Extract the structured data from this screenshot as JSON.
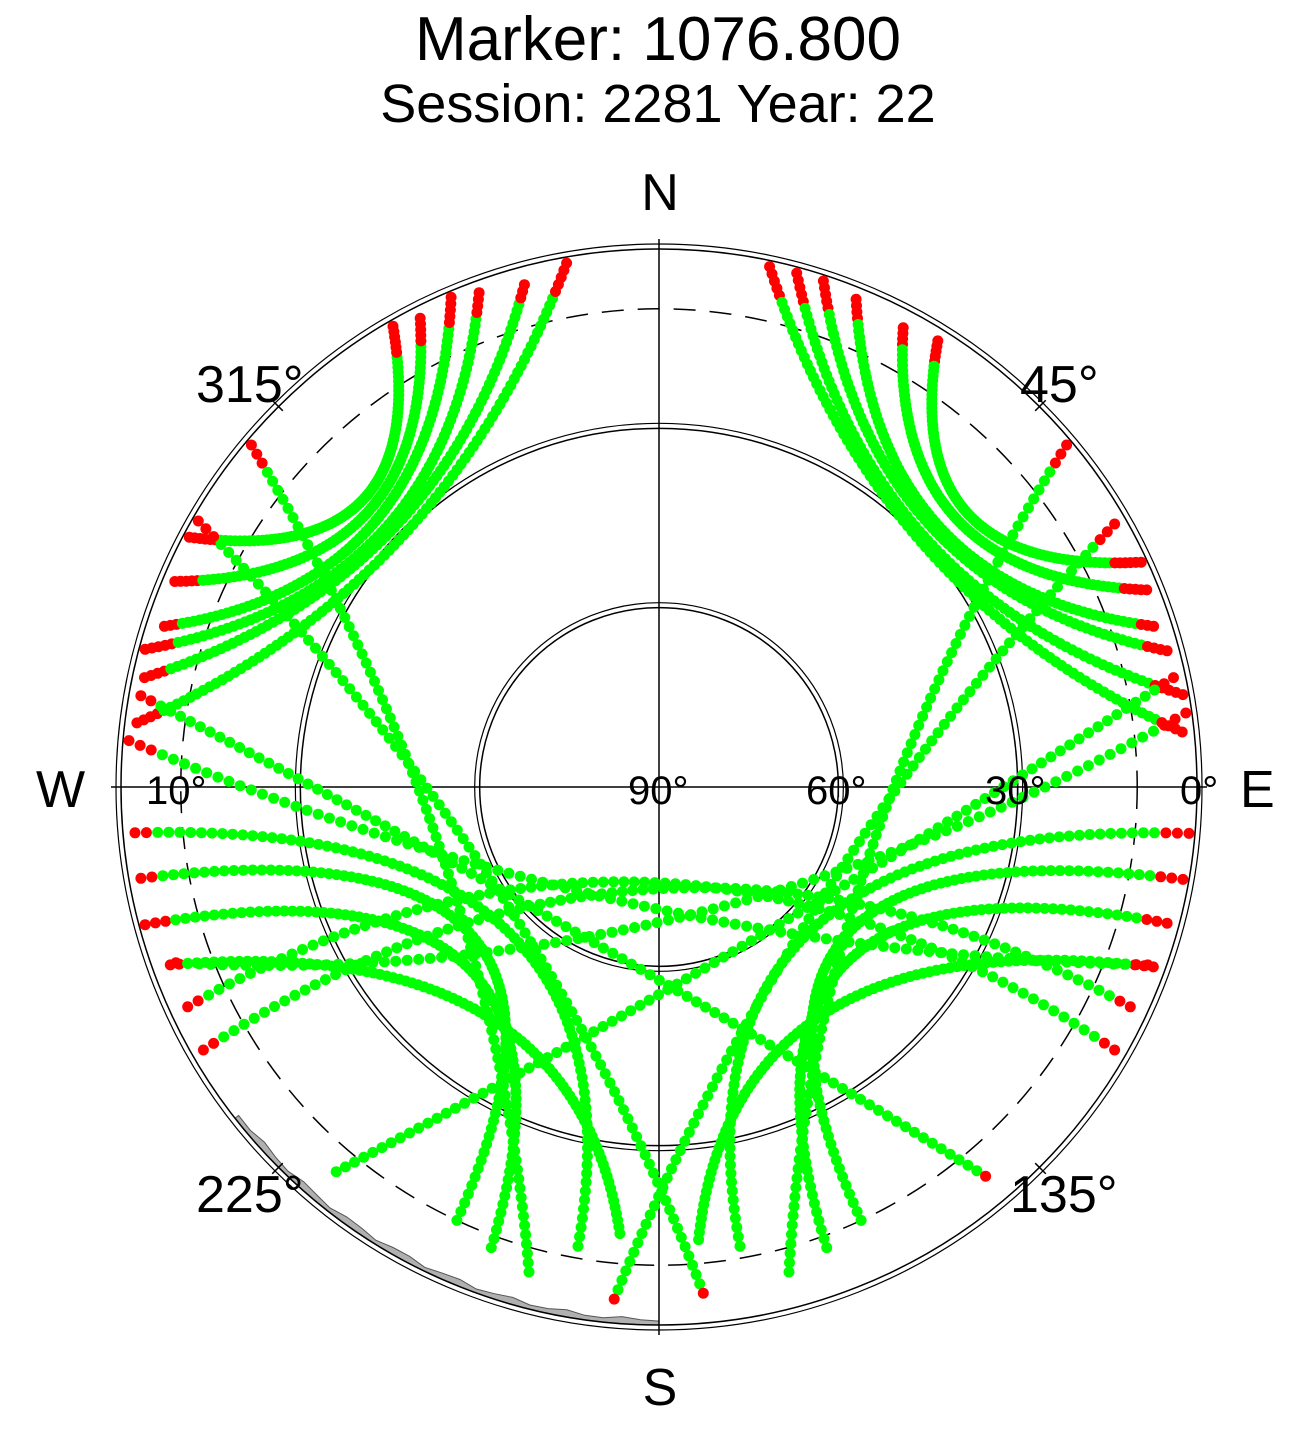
{
  "chart_data": {
    "type": "scatter",
    "projection": "polar-skyplot",
    "title": "Marker: 1076.800",
    "subtitle": "Session: 2281 Year: 22",
    "compass": {
      "north": "N",
      "south": "S",
      "east": "E",
      "west": "W"
    },
    "azimuth_labels": [
      {
        "az": 315,
        "text": "315°"
      },
      {
        "az": 45,
        "text": "45°"
      },
      {
        "az": 225,
        "text": "225°"
      },
      {
        "az": 135,
        "text": "135°"
      }
    ],
    "elevation_labels": [
      {
        "text": "0°",
        "el": 0,
        "side": "east"
      },
      {
        "text": "30°",
        "el": 30,
        "side": "east"
      },
      {
        "text": "60°",
        "el": 60,
        "side": "east"
      },
      {
        "text": "90°",
        "el": 90,
        "side": "center"
      },
      {
        "text": "10°",
        "el": 10,
        "side": "west"
      }
    ],
    "elevation_circles": [
      0,
      30,
      60
    ],
    "dashed_circle_el": 10,
    "ylim": [
      0,
      90
    ],
    "grid": true,
    "colors": {
      "above_mask": "#00ff00",
      "below_mask": "#ff0000",
      "horizon_obstruction": "#b0b0b0"
    },
    "tracks": [
      {
        "el0": 1,
        "az0": 285,
        "el1": 2,
        "az1": 340,
        "peak": 27
      },
      {
        "el0": 2,
        "az0": 282,
        "el1": 3,
        "az1": 345,
        "peak": 28
      },
      {
        "el0": 3,
        "az0": 288,
        "el1": 1,
        "az1": 337,
        "peak": 25
      },
      {
        "el0": 2,
        "az0": 293,
        "el1": 2,
        "az1": 333,
        "peak": 23
      },
      {
        "el0": 1,
        "az0": 298,
        "el1": 1,
        "az1": 330,
        "peak": 21
      },
      {
        "el0": 2,
        "az0": 277,
        "el1": 1,
        "az1": 350,
        "peak": 30
      },
      {
        "el0": 1,
        "az0": 18,
        "el1": 2,
        "az1": 75,
        "peak": 27
      },
      {
        "el0": 2,
        "az0": 22,
        "el1": 3,
        "az1": 72,
        "peak": 26
      },
      {
        "el0": 1,
        "az0": 15,
        "el1": 1,
        "az1": 80,
        "peak": 29
      },
      {
        "el0": 3,
        "az0": 28,
        "el1": 2,
        "az1": 68,
        "peak": 23
      },
      {
        "el0": 2,
        "az0": 32,
        "el1": 1,
        "az1": 65,
        "peak": 21
      },
      {
        "el0": 1,
        "az0": 12,
        "el1": 2,
        "az1": 84,
        "peak": 30
      },
      {
        "el0": 2,
        "az0": 260,
        "el1": 10,
        "az1": 205,
        "peak": 50
      },
      {
        "el0": 1,
        "az0": 255,
        "el1": 8,
        "az1": 200,
        "peak": 46
      },
      {
        "el0": 2,
        "az0": 265,
        "el1": 12,
        "az1": 190,
        "peak": 55
      },
      {
        "el0": 3,
        "az0": 250,
        "el1": 15,
        "az1": 185,
        "peak": 42
      },
      {
        "el0": 1,
        "az0": 100,
        "el1": 10,
        "az1": 155,
        "peak": 50
      },
      {
        "el0": 2,
        "az0": 105,
        "el1": 8,
        "az1": 160,
        "peak": 47
      },
      {
        "el0": 1,
        "az0": 95,
        "el1": 12,
        "az1": 170,
        "peak": 55
      },
      {
        "el0": 2,
        "az0": 110,
        "el1": 14,
        "az1": 175,
        "peak": 43
      },
      {
        "el0": 1,
        "az0": 275,
        "el1": 3,
        "az1": 110,
        "peak": 70
      },
      {
        "el0": 2,
        "az0": 280,
        "el1": 5,
        "az1": 140,
        "peak": 62
      },
      {
        "el0": 1,
        "az0": 82,
        "el1": 4,
        "az1": 250,
        "peak": 68
      },
      {
        "el0": 2,
        "az0": 78,
        "el1": 6,
        "az1": 220,
        "peak": 60
      },
      {
        "el0": 1,
        "az0": 300,
        "el1": 5,
        "az1": 175,
        "peak": 58
      },
      {
        "el0": 2,
        "az0": 60,
        "el1": 4,
        "az1": 185,
        "peak": 57
      },
      {
        "el0": 1,
        "az0": 310,
        "el1": 6,
        "az1": 195,
        "peak": 52
      },
      {
        "el0": 1,
        "az0": 50,
        "el1": 6,
        "az1": 165,
        "peak": 53
      },
      {
        "el0": 3,
        "az0": 245,
        "el1": 2,
        "az1": 120,
        "peak": 74
      },
      {
        "el0": 3,
        "az0": 115,
        "el1": 2,
        "az1": 240,
        "peak": 73
      }
    ]
  }
}
